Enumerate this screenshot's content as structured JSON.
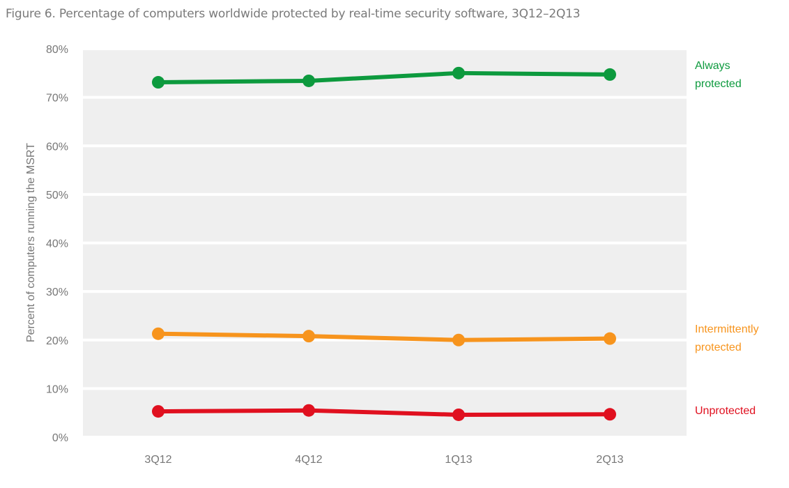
{
  "chart_data": {
    "type": "line",
    "title": "Figure 6. Percentage of computers worldwide protected by real-time security software, 3Q12–2Q13",
    "xlabel": "",
    "ylabel": "Percent of computers running the MSRT",
    "categories": [
      "3Q12",
      "4Q12",
      "1Q13",
      "2Q13"
    ],
    "ylim": [
      0,
      80
    ],
    "yticks": [
      0,
      10,
      20,
      30,
      40,
      50,
      60,
      70,
      80
    ],
    "ytick_labels": [
      "0%",
      "10%",
      "20%",
      "30%",
      "40%",
      "50%",
      "60%",
      "70%",
      "80%"
    ],
    "grid": true,
    "legend": "right, inline labels next to line ends",
    "series": [
      {
        "name": "Always protected",
        "label_lines": [
          "Always",
          "protected"
        ],
        "color": "#0d9a3e",
        "values": [
          73.1,
          73.4,
          75.0,
          74.7
        ]
      },
      {
        "name": "Intermittently protected",
        "label_lines": [
          "Intermittently",
          "protected"
        ],
        "color": "#f7941d",
        "values": [
          21.3,
          20.8,
          20.0,
          20.3
        ]
      },
      {
        "name": "Unprotected",
        "label_lines": [
          "Unprotected"
        ],
        "color": "#e0101f",
        "values": [
          5.3,
          5.5,
          4.6,
          4.7
        ]
      }
    ],
    "plot_background": "#efefef"
  }
}
